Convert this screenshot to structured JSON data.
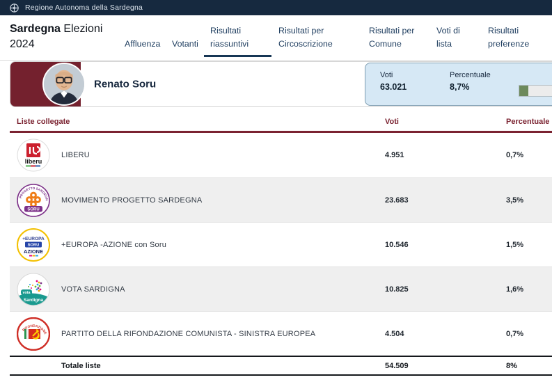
{
  "topbar": {
    "label": "Regione Autonoma della Sardegna"
  },
  "header": {
    "title": {
      "bold": "Sardegna",
      "rest": "Elezioni",
      "line2": "2024"
    },
    "tabs": [
      {
        "label": "Affluenza",
        "active": false
      },
      {
        "label": "Votanti",
        "active": false
      },
      {
        "label": "Risultati riassuntivi",
        "active": true
      },
      {
        "label": "Risultati per Circoscrizione",
        "active": false
      },
      {
        "label": "Risultati per Comune",
        "active": false
      },
      {
        "label": "Voti di lista",
        "active": false
      },
      {
        "label": "Risultati preferenze",
        "active": false
      }
    ]
  },
  "candidate": {
    "name": "Renato Soru",
    "votes_label": "Voti",
    "votes": "63.021",
    "pct_label": "Percentuale",
    "pct": "8,7%",
    "pct_value": 8.7
  },
  "table": {
    "columns": {
      "lists": "Liste collegate",
      "votes": "Voti",
      "pct": "Percentuale"
    },
    "rows": [
      {
        "name": "LIBERU",
        "votes": "4.951",
        "pct": "0,7%",
        "logo": {
          "text": "liberu"
        }
      },
      {
        "name": "MOVIMENTO PROGETTO SARDEGNA",
        "votes": "23.683",
        "pct": "3,5%",
        "logo": {
          "arc": "PROGETTO SARDEGNA",
          "banner": "SORU"
        }
      },
      {
        "name": "+EUROPA -AZIONE con Soru",
        "votes": "10.546",
        "pct": "1,5%",
        "logo": {
          "line1": "+EUROPA",
          "line2": "SORU",
          "line3": "AZIONE"
        }
      },
      {
        "name": "VOTA SARDIGNA",
        "votes": "10.825",
        "pct": "1,6%",
        "logo": {
          "tag": "vota",
          "wave": "Sardigna"
        }
      },
      {
        "name": "PARTITO DELLA RIFONDAZIONE COMUNISTA - SINISTRA EUROPEA",
        "votes": "4.504",
        "pct": "0,7%",
        "logo": {
          "arc": "RIFONDAZIONE"
        }
      }
    ],
    "total": {
      "label": "Totale liste",
      "votes": "54.509",
      "pct": "8%"
    }
  },
  "colors": {
    "topbar_bg": "#16293f",
    "accent_maroon": "#7b2331",
    "candidate_block": "#74212e",
    "stats_box_bg": "#d6e8f5",
    "progress_green": "#6d8a5c",
    "row_alt_bg": "#efefef",
    "nav_text": "#1d3c5e"
  }
}
